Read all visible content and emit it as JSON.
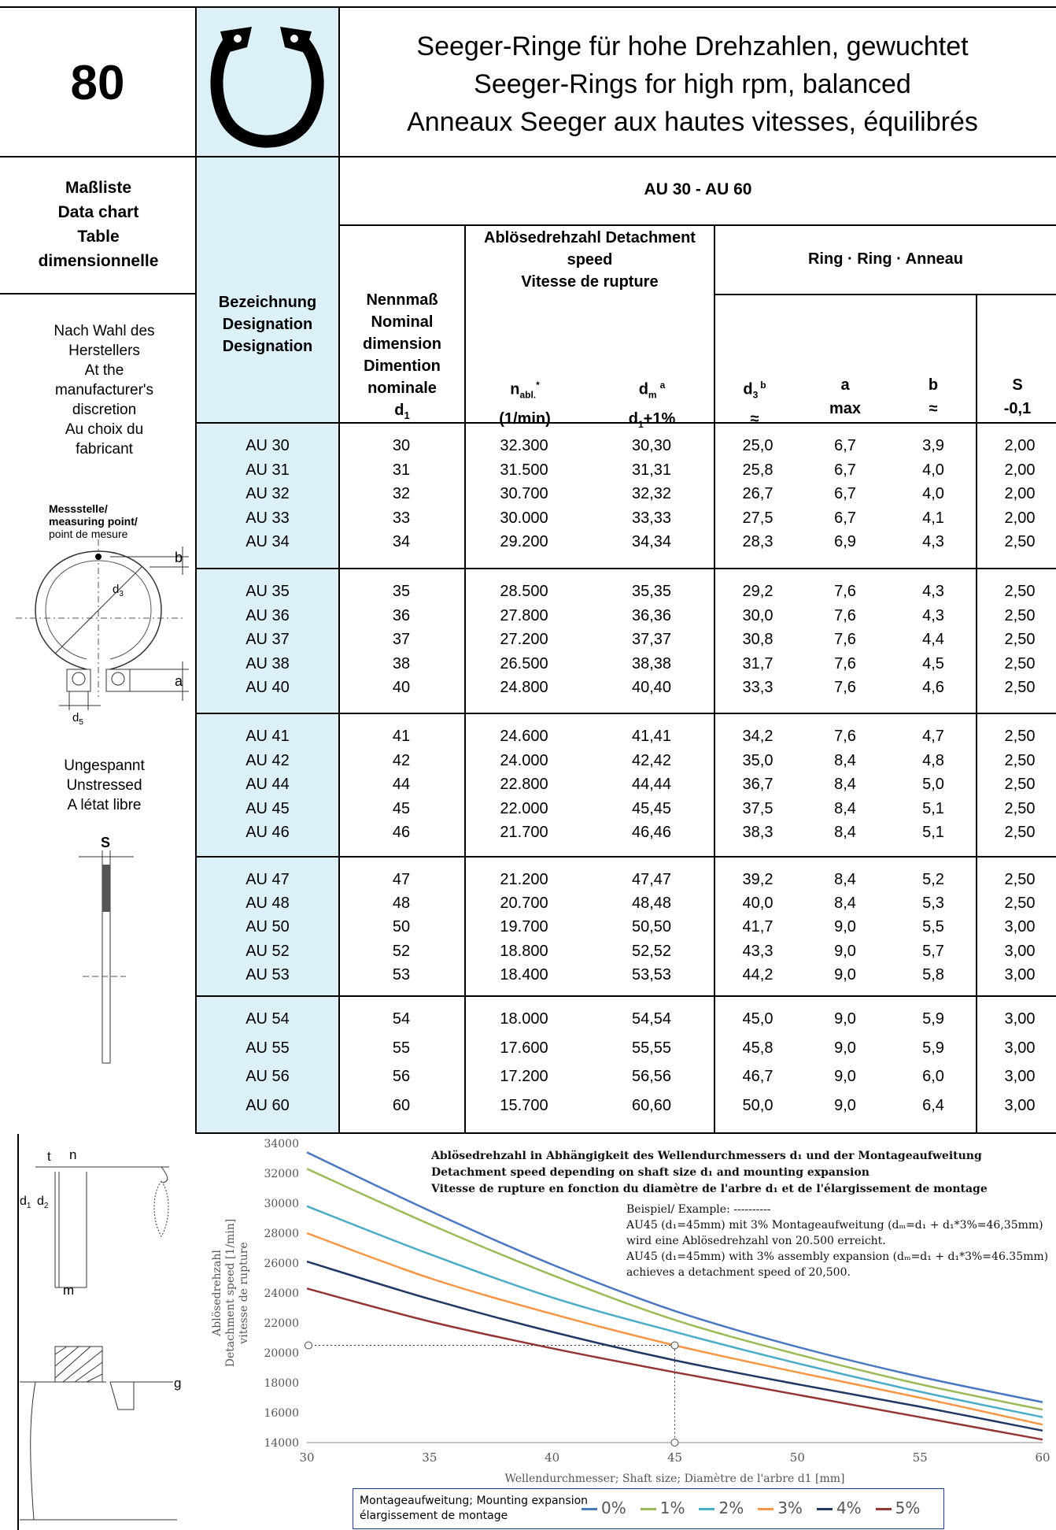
{
  "header": {
    "page_number": "80",
    "title_lines": [
      "Seeger-Ringe für hohe Drehzahlen, gewuchtet",
      "Seeger-Rings for high rpm, balanced",
      "Anneaux Seeger aux hautes vitesses, équilibrés"
    ]
  },
  "left_column": {
    "data_chart_label": [
      "Maßliste",
      "Data chart",
      "Table",
      "dimensionnelle"
    ],
    "manufacturer_note": [
      "Nach Wahl des",
      "Herstellers",
      "At the",
      "manufacturer's",
      "discretion",
      "Au choix du",
      "fabricant"
    ],
    "measuring_point": [
      "Messstelle/",
      "measuring point/",
      "point de mesure"
    ],
    "drawing_labels": {
      "b": "b",
      "d3": "d",
      "d3_sub": "3",
      "a": "a",
      "d5": "d",
      "d5_sub": "5",
      "s": "S",
      "t": "t",
      "n": "n",
      "d1": "d",
      "d1_sub": "1",
      "d2": "d",
      "d2_sub": "2",
      "m": "m",
      "g": "g"
    },
    "state_note": [
      "Ungespannt",
      "Unstressed",
      "A létat libre"
    ]
  },
  "table": {
    "range_title": "AU 30 - AU 60",
    "designation_header": [
      "Bezeichnung",
      "Designation",
      "Designation"
    ],
    "nominal_header": [
      "Nennmaß",
      "Nominal",
      "dimension",
      "Dimention",
      "nominale"
    ],
    "nominal_symbol": "d",
    "nominal_symbol_sub": "1",
    "detachment_header": [
      "Ablösedrehzahl Detachment",
      "speed",
      "Vitesse de rupture"
    ],
    "ring_header": "Ring · Ring · Anneau",
    "col_nabl": {
      "sym": "n",
      "sub": "abl.",
      "sup": "*",
      "unit": "(1/min)"
    },
    "col_dm": {
      "sym": "d",
      "sub": "m",
      "sup": "a",
      "line2": "d",
      "line2_sub": "1",
      "line2_rest": "+1%"
    },
    "col_d3": {
      "sym": "d",
      "sub": "3",
      "sup": "b",
      "line2": "≈"
    },
    "col_a": {
      "sym": "a",
      "line2": "max"
    },
    "col_b": {
      "sym": "b",
      "line2": "≈"
    },
    "col_s": {
      "sym": "S",
      "line2": "-0,1"
    },
    "groups": [
      [
        [
          "AU 30",
          "30",
          "32.300",
          "30,30",
          "25,0",
          "6,7",
          "3,9",
          "2,00"
        ],
        [
          "AU 31",
          "31",
          "31.500",
          "31,31",
          "25,8",
          "6,7",
          "4,0",
          "2,00"
        ],
        [
          "AU 32",
          "32",
          "30.700",
          "32,32",
          "26,7",
          "6,7",
          "4,0",
          "2,00"
        ],
        [
          "AU 33",
          "33",
          "30.000",
          "33,33",
          "27,5",
          "6,7",
          "4,1",
          "2,00"
        ],
        [
          "AU 34",
          "34",
          "29.200",
          "34,34",
          "28,3",
          "6,9",
          "4,3",
          "2,50"
        ]
      ],
      [
        [
          "AU 35",
          "35",
          "28.500",
          "35,35",
          "29,2",
          "7,6",
          "4,3",
          "2,50"
        ],
        [
          "AU 36",
          "36",
          "27.800",
          "36,36",
          "30,0",
          "7,6",
          "4,3",
          "2,50"
        ],
        [
          "AU 37",
          "37",
          "27.200",
          "37,37",
          "30,8",
          "7,6",
          "4,4",
          "2,50"
        ],
        [
          "AU 38",
          "38",
          "26.500",
          "38,38",
          "31,7",
          "7,6",
          "4,5",
          "2,50"
        ],
        [
          "AU 40",
          "40",
          "24.800",
          "40,40",
          "33,3",
          "7,6",
          "4,6",
          "2,50"
        ]
      ],
      [
        [
          "AU 41",
          "41",
          "24.600",
          "41,41",
          "34,2",
          "7,6",
          "4,7",
          "2,50"
        ],
        [
          "AU 42",
          "42",
          "24.000",
          "42,42",
          "35,0",
          "8,4",
          "4,8",
          "2,50"
        ],
        [
          "AU 44",
          "44",
          "22.800",
          "44,44",
          "36,7",
          "8,4",
          "5,0",
          "2,50"
        ],
        [
          "AU 45",
          "45",
          "22.000",
          "45,45",
          "37,5",
          "8,4",
          "5,1",
          "2,50"
        ],
        [
          "AU 46",
          "46",
          "21.700",
          "46,46",
          "38,3",
          "8,4",
          "5,1",
          "2,50"
        ]
      ],
      [
        [
          "AU 47",
          "47",
          "21.200",
          "47,47",
          "39,2",
          "8,4",
          "5,2",
          "2,50"
        ],
        [
          "AU 48",
          "48",
          "20.700",
          "48,48",
          "40,0",
          "8,4",
          "5,3",
          "2,50"
        ],
        [
          "AU 50",
          "50",
          "19.700",
          "50,50",
          "41,7",
          "9,0",
          "5,5",
          "3,00"
        ],
        [
          "AU 52",
          "52",
          "18.800",
          "52,52",
          "43,3",
          "9,0",
          "5,7",
          "3,00"
        ],
        [
          "AU 53",
          "53",
          "18.400",
          "53,53",
          "44,2",
          "9,0",
          "5,8",
          "3,00"
        ]
      ],
      [
        [
          "AU 54",
          "54",
          "18.000",
          "54,54",
          "45,0",
          "9,0",
          "5,9",
          "3,00"
        ],
        [
          "AU 55",
          "55",
          "17.600",
          "55,55",
          "45,8",
          "9,0",
          "5,9",
          "3,00"
        ],
        [
          "AU 56",
          "56",
          "17.200",
          "56,56",
          "46,7",
          "9,0",
          "6,0",
          "3,00"
        ],
        [
          "AU 60",
          "60",
          "15.700",
          "60,60",
          "50,0",
          "9,0",
          "6,4",
          "3,00"
        ]
      ]
    ]
  },
  "chart_data": {
    "type": "line",
    "title_lines": [
      "Ablösedrehzahl in Abhängigkeit des Wellendurchmessers d₁ und der Montageaufweitung",
      "Detachment speed depending on shaft size d₁ and mounting expansion",
      "Vitesse de rupture en fonction du diamètre de l'arbre d₁ et de l'élargissement de montage"
    ],
    "example_lines": [
      "Beispiel/ Example: ----------",
      "AU45 (d₁=45mm) mit 3% Montageaufweitung (dₘ=d₁ + d₁*3%=46,35mm)",
      "wird eine Ablösedrehzahl von 20.500 erreicht.",
      "AU45 (d₁=45mm) with 3% assembly expansion (dₘ=d₁ + d₁*3%=46.35mm)",
      "achieves a detachment speed of 20,500."
    ],
    "xlabel": "Wellendurchmesser; Shaft size; Diamètre de l'arbre d1 [mm]",
    "ylabel_lines": [
      "Ablösedrehzahl",
      "Detachment speed [1/min]",
      "vitesse de rupture"
    ],
    "xlim": [
      30,
      60
    ],
    "ylim": [
      14000,
      34000
    ],
    "xticks": [
      "30",
      "35",
      "40",
      "45",
      "50",
      "55",
      "60"
    ],
    "yticks": [
      "14000",
      "16000",
      "18000",
      "20000",
      "22000",
      "24000",
      "26000",
      "28000",
      "30000",
      "32000",
      "34000"
    ],
    "x": [
      30,
      35,
      40,
      45,
      50,
      55,
      60
    ],
    "series": [
      {
        "name": "0%",
        "color": "#4a78c0",
        "values": [
          33400,
          29500,
          25900,
          22800,
          20400,
          18400,
          16700
        ]
      },
      {
        "name": "1%",
        "color": "#9bbb59",
        "values": [
          32300,
          28600,
          25200,
          22200,
          19900,
          17900,
          16200
        ]
      },
      {
        "name": "2%",
        "color": "#4bacc6",
        "values": [
          29800,
          26600,
          23700,
          21400,
          19300,
          17400,
          15700
        ]
      },
      {
        "name": "3%",
        "color": "#f79646",
        "values": [
          28000,
          25000,
          22600,
          20500,
          18700,
          17000,
          15200
        ]
      },
      {
        "name": "4%",
        "color": "#1f3864",
        "values": [
          26100,
          23600,
          21400,
          19500,
          17900,
          16400,
          14800
        ]
      },
      {
        "name": "5%",
        "color": "#943634",
        "values": [
          24300,
          22100,
          20300,
          18700,
          17200,
          15700,
          14200
        ]
      }
    ],
    "example_point": {
      "x": 45,
      "y": 20500
    },
    "legend_title_lines": [
      "Montageaufweitung; Mounting expansion",
      "élargissement de montage"
    ],
    "legend_position": "bottom"
  }
}
